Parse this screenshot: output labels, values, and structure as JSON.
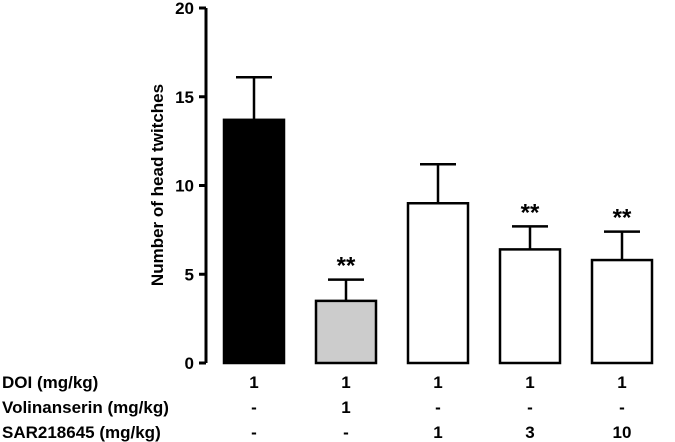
{
  "chart_data": {
    "type": "bar",
    "ylabel": "Number of head twitches",
    "ylim": [
      0,
      20
    ],
    "yticks": [
      0,
      5,
      10,
      15,
      20
    ],
    "groups": [
      {
        "value": 13.7,
        "error": 2.4,
        "fill": "#000000",
        "significance": ""
      },
      {
        "value": 3.5,
        "error": 1.2,
        "fill": "#cccccc",
        "significance": "**"
      },
      {
        "value": 9.0,
        "error": 2.2,
        "fill": "#ffffff",
        "significance": ""
      },
      {
        "value": 6.4,
        "error": 1.3,
        "fill": "#ffffff",
        "significance": "**"
      },
      {
        "value": 5.8,
        "error": 1.6,
        "fill": "#ffffff",
        "significance": "**"
      }
    ],
    "dose_table": [
      {
        "label": "DOI (mg/kg)",
        "values": [
          "1",
          "1",
          "1",
          "1",
          "1"
        ]
      },
      {
        "label": "Volinanserin (mg/kg)",
        "values": [
          "-",
          "1",
          "-",
          "-",
          "-"
        ]
      },
      {
        "label": "SAR218645 (mg/kg)",
        "values": [
          "-",
          "-",
          "1",
          "3",
          "10"
        ]
      }
    ]
  }
}
